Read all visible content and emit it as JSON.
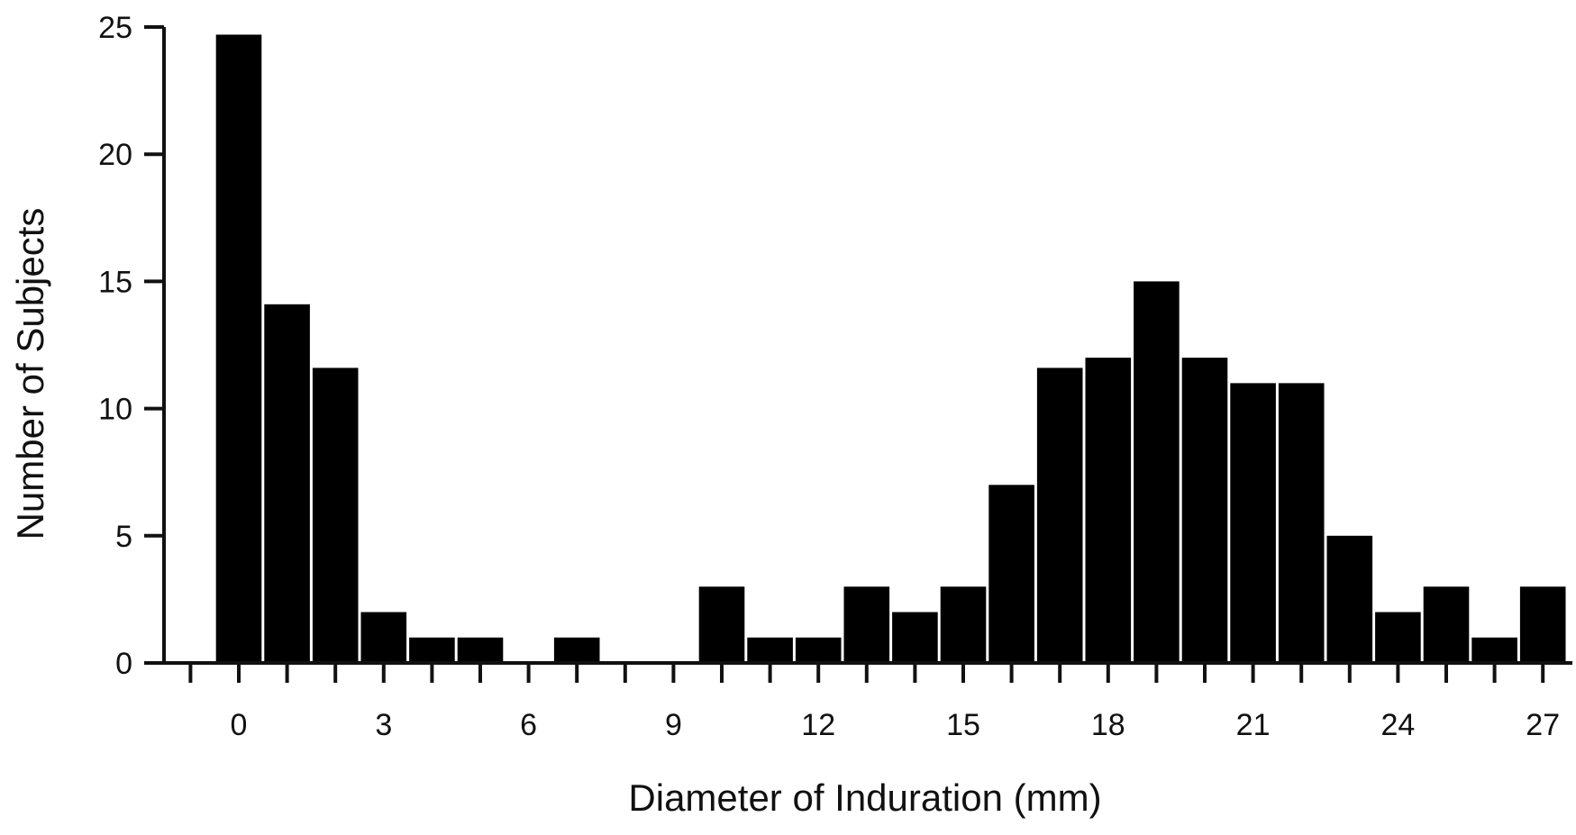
{
  "chart_data": {
    "type": "bar",
    "xlabel": "Diameter  of Induration (mm)",
    "ylabel": "Number of Subjects",
    "ylim": [
      0,
      25
    ],
    "xlim": [
      -1,
      27.5
    ],
    "yticks": [
      0,
      5,
      10,
      15,
      20,
      25
    ],
    "xticks": [
      0,
      3,
      6,
      9,
      12,
      15,
      18,
      21,
      24,
      27
    ],
    "grid": false,
    "bar_color": "#000000",
    "x": [
      0,
      1,
      2,
      3,
      4,
      5,
      6,
      7,
      8,
      9,
      10,
      11,
      12,
      13,
      14,
      15,
      16,
      17,
      18,
      19,
      20,
      21,
      22,
      23,
      24,
      25,
      26,
      27
    ],
    "values": [
      24.7,
      14.1,
      11.6,
      2,
      1,
      1,
      0,
      1,
      0,
      0,
      3,
      1,
      1,
      3,
      2,
      3,
      7,
      11.6,
      12,
      15,
      12,
      11,
      11,
      5,
      2,
      3,
      1,
      3
    ]
  }
}
